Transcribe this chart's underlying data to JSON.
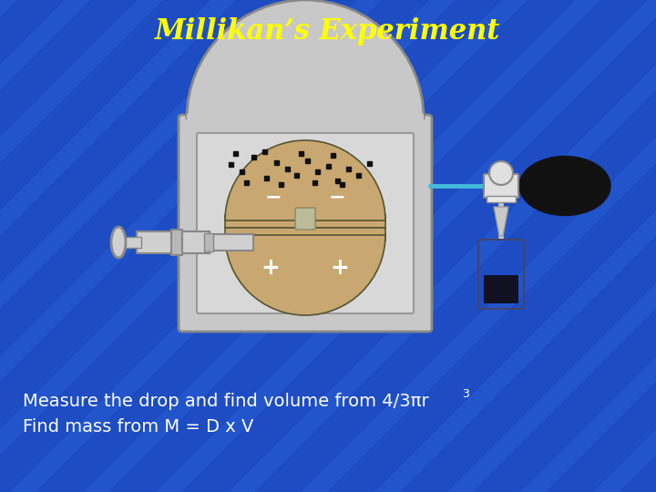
{
  "title": "Millikan’s Experiment",
  "title_color": "#FFFF00",
  "title_fontsize": 22,
  "bg_color": "#2255cc",
  "stripe_color": "#1a44bb",
  "text_line1": "Measure the drop and find volume from 4/3πr",
  "text_superscript": "3",
  "text_line2": "Find mass from M = D x V",
  "text_color": "#FFFFFF",
  "text_fontsize": 14,
  "plate_color": "#c8a870",
  "plate_edge_color": "#555533",
  "chamber_outer_color": "#c8c8c8",
  "chamber_inner_color": "#d8d8d8",
  "inner_bg": "#c8c8d4",
  "dot_color": "#111111",
  "minus_color": "#FFFFFF",
  "plus_color": "#FFFFFF",
  "nozzle_color": "#e0e0e0",
  "nozzle_edge": "#888888",
  "bulb_color": "#111111",
  "tube_color": "#44bbdd",
  "scope_color": "#d0d0d0",
  "scope_edge": "#888888"
}
